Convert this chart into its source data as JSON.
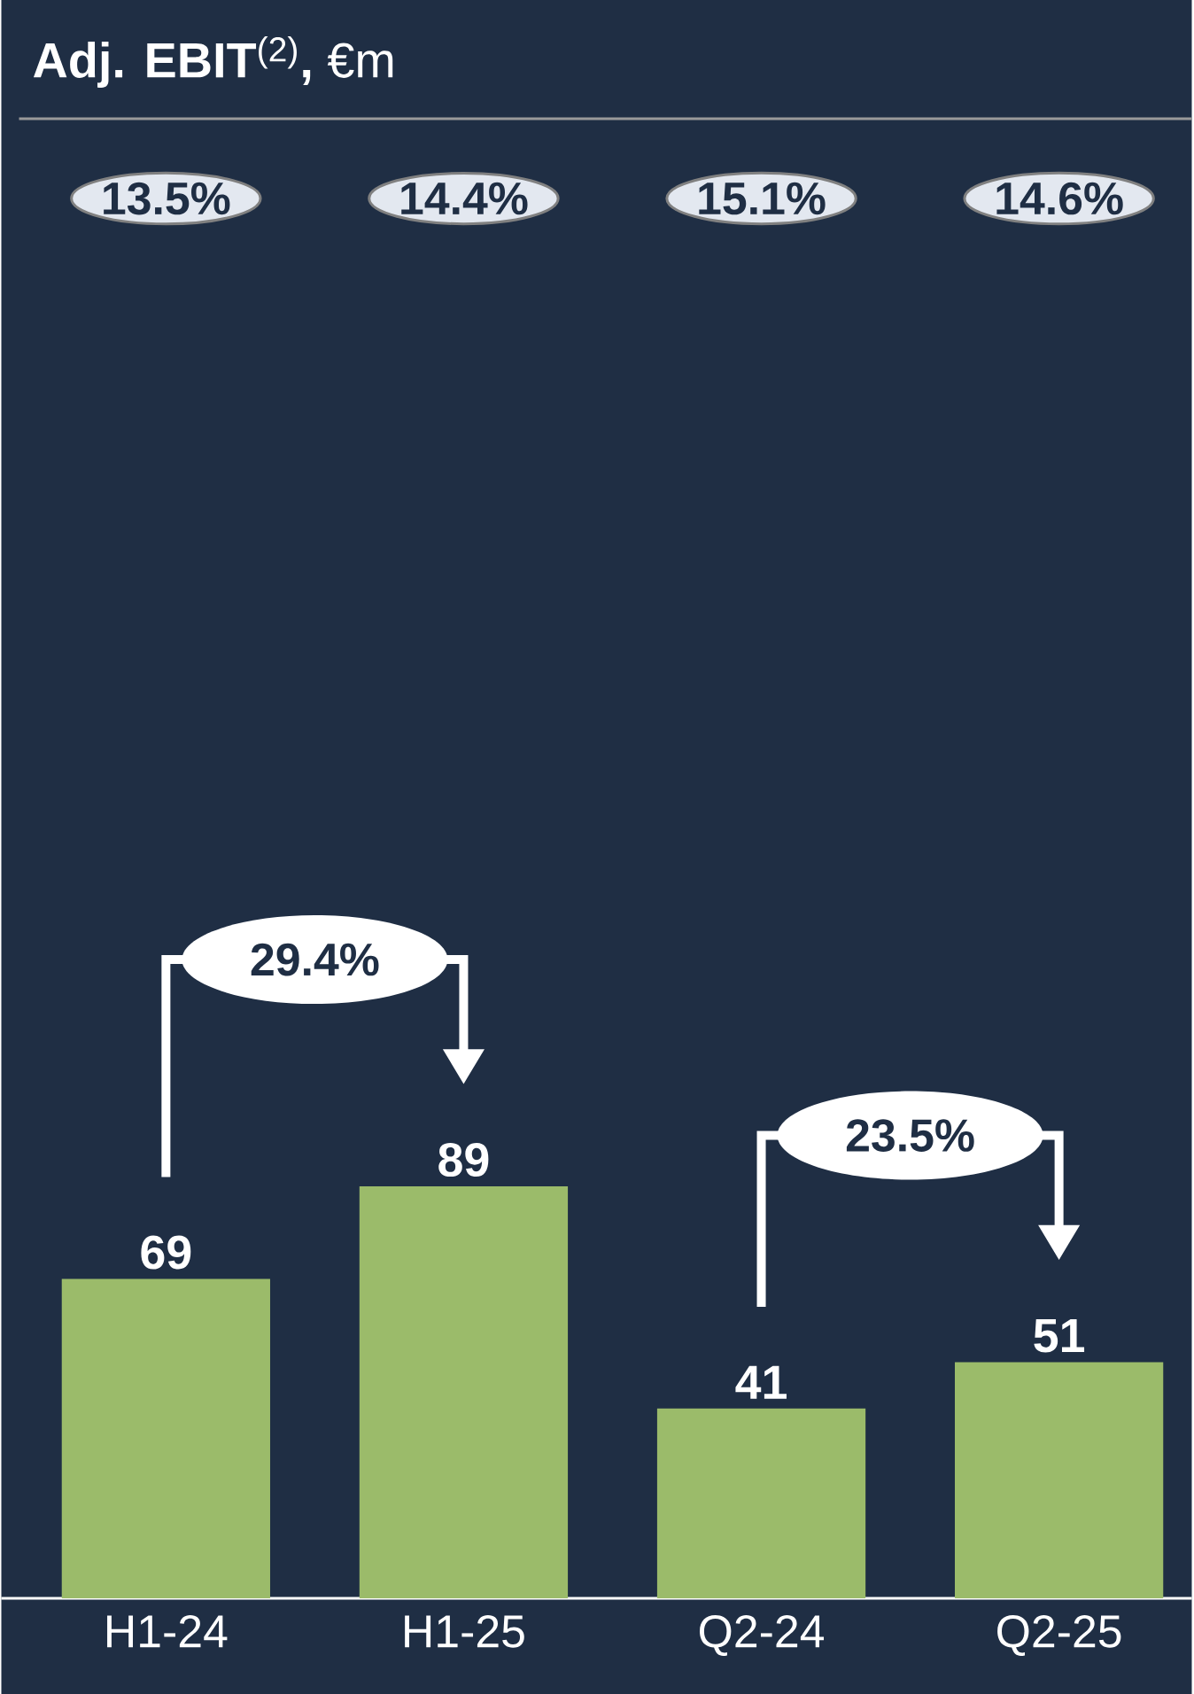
{
  "chart_data": {
    "type": "bar",
    "title": "**Adj. EBIT**$^{(2)}$**,** €m",
    "categories": [
      "H1-24",
      "H1-25",
      "Q2-24",
      "Q2-25"
    ],
    "values": [
      69,
      89,
      41,
      51
    ],
    "color": "#9bbb6a",
    "data_labels": true,
    "annotations": [
      "13.5%",
      "14.4%",
      "15.1%",
      "14.6%",
      "29.4%",
      "23.5%"
    ]
  }
}
